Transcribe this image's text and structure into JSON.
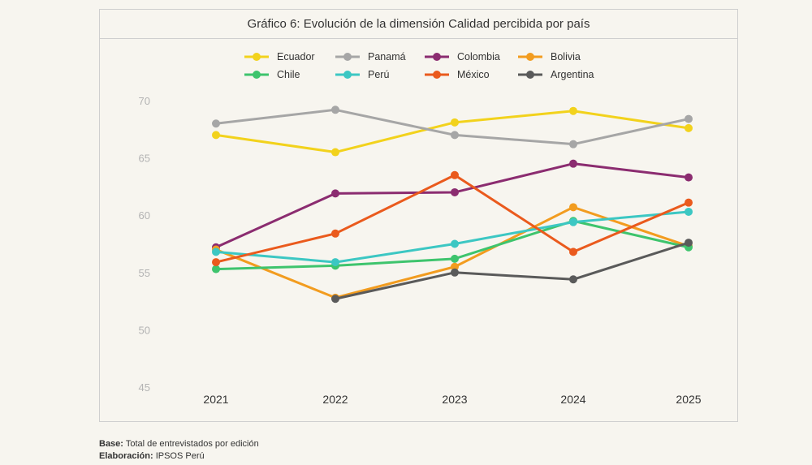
{
  "chart_data": {
    "type": "line",
    "title": "Gráfico 6: Evolución de la dimensión Calidad percibida por país",
    "x": [
      "2021",
      "2022",
      "2023",
      "2024",
      "2025"
    ],
    "ylim": [
      45,
      70
    ],
    "yticks": [
      45,
      50,
      55,
      60,
      65,
      70
    ],
    "xlabel": "",
    "ylabel": "",
    "series": [
      {
        "name": "Ecuador",
        "color": "#f2d21c",
        "values": [
          67.0,
          65.5,
          68.1,
          69.1,
          67.6
        ]
      },
      {
        "name": "Panamá",
        "color": "#a6a6a6",
        "values": [
          68.0,
          69.2,
          67.0,
          66.2,
          68.4
        ]
      },
      {
        "name": "Colombia",
        "color": "#8b2c70",
        "values": [
          57.2,
          61.9,
          62.0,
          64.5,
          63.3
        ]
      },
      {
        "name": "Bolivia",
        "color": "#f29c1f",
        "values": [
          57.0,
          52.8,
          55.5,
          60.7,
          57.3
        ]
      },
      {
        "name": "Chile",
        "color": "#3ec46d",
        "values": [
          55.3,
          55.6,
          56.2,
          59.5,
          57.2
        ]
      },
      {
        "name": "Perú",
        "color": "#3cc7c3",
        "values": [
          56.8,
          55.9,
          57.5,
          59.4,
          60.3
        ]
      },
      {
        "name": "México",
        "color": "#ea5a1d",
        "values": [
          55.9,
          58.4,
          63.5,
          56.8,
          61.1
        ]
      },
      {
        "name": "Argentina",
        "color": "#5a5a5a",
        "values": [
          null,
          52.7,
          55.0,
          54.4,
          57.6
        ]
      }
    ]
  },
  "footer": {
    "base_label": "Base:",
    "base_text": "Total de entrevistados por edición",
    "elab_label": "Elaboración:",
    "elab_text": "IPSOS Perú"
  }
}
